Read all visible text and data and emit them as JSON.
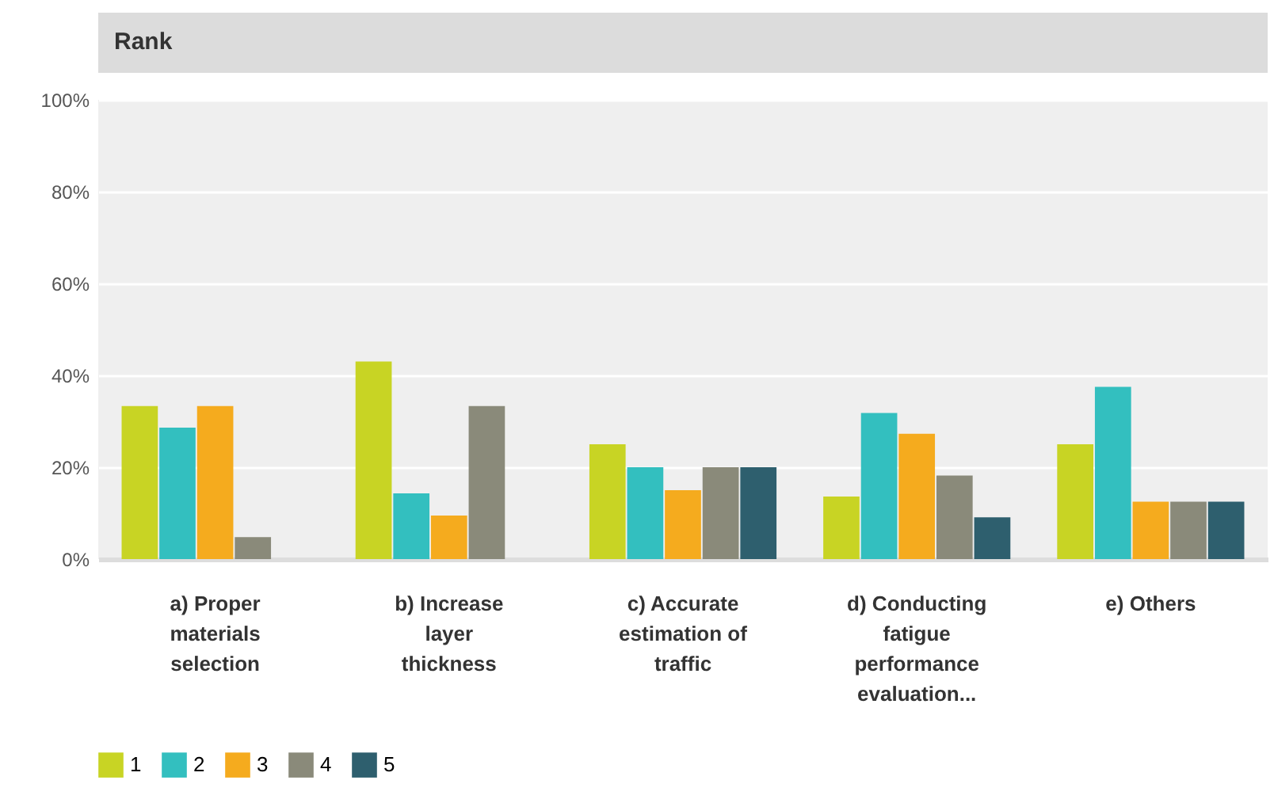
{
  "chart_data": {
    "type": "bar",
    "title": "Rank",
    "categories": [
      "a) Proper materials selection",
      "b) Increase layer thickness",
      "c) Accurate estimation of traffic",
      "d) Conducting fatigue performance evaluation...",
      "e) Others"
    ],
    "series": [
      {
        "name": "1",
        "color": "#c8d424",
        "values": [
          33.3,
          43,
          25,
          13.6,
          25
        ]
      },
      {
        "name": "2",
        "color": "#33bfbf",
        "values": [
          28.6,
          14.3,
          20,
          31.8,
          37.5
        ]
      },
      {
        "name": "3",
        "color": "#f5ab1e",
        "values": [
          33.3,
          9.5,
          15,
          27.3,
          12.5
        ]
      },
      {
        "name": "4",
        "color": "#8a8a7a",
        "values": [
          4.8,
          33.3,
          20,
          18.2,
          12.5
        ]
      },
      {
        "name": "5",
        "color": "#2e5f6e",
        "values": [
          0,
          0,
          20,
          9.1,
          12.5
        ]
      }
    ],
    "ylim": [
      0,
      100
    ],
    "yticks": [
      {
        "value": 0,
        "label": "0%"
      },
      {
        "value": 20,
        "label": "20%"
      },
      {
        "value": 40,
        "label": "40%"
      },
      {
        "value": 60,
        "label": "60%"
      },
      {
        "value": 80,
        "label": "80%"
      },
      {
        "value": 100,
        "label": "100%"
      }
    ],
    "grid": "y",
    "legend": "bottom left"
  }
}
